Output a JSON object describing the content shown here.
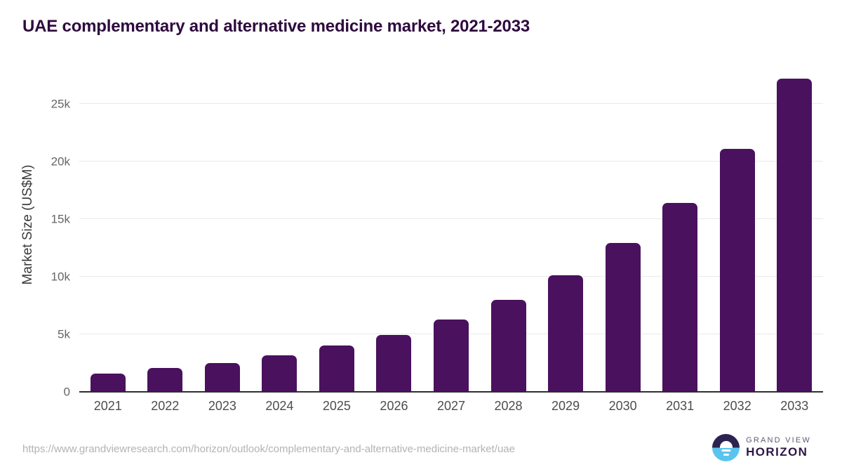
{
  "title": "UAE complementary and alternative medicine market, 2021-2033",
  "chart_data": {
    "type": "bar",
    "title": "UAE complementary and alternative medicine market, 2021-2033",
    "categories": [
      "2021",
      "2022",
      "2023",
      "2024",
      "2025",
      "2026",
      "2027",
      "2028",
      "2029",
      "2030",
      "2031",
      "2032",
      "2033"
    ],
    "values": [
      1600,
      2050,
      2500,
      3150,
      4000,
      4950,
      6300,
      8000,
      10100,
      12900,
      16400,
      21100,
      27150
    ],
    "xlabel": "",
    "ylabel": "Market Size (US$M)",
    "ylim": [
      0,
      27600
    ],
    "yticks": [
      {
        "value": 0,
        "label": "0"
      },
      {
        "value": 5000,
        "label": "5k"
      },
      {
        "value": 10000,
        "label": "10k"
      },
      {
        "value": 15000,
        "label": "15k"
      },
      {
        "value": 20000,
        "label": "20k"
      },
      {
        "value": 25000,
        "label": "25k"
      }
    ],
    "grid": true,
    "legend": false,
    "bar_color": "#4a115e"
  },
  "colors": {
    "title": "#2e0a3e",
    "bar": "#4a115e",
    "gridline": "#e9e9e9",
    "axis_line": "#2f2f2f",
    "tick_label": "#666666",
    "url_text": "#b3b3b3",
    "logo_dark": "#2d2352",
    "logo_blue": "#5ac4ef"
  },
  "footer": {
    "source_url": "https://www.grandviewresearch.com/horizon/outlook/complementary-and-alternative-medicine-market/uae",
    "logo": {
      "line1": "GRAND VIEW",
      "line2": "HORIZON"
    }
  }
}
